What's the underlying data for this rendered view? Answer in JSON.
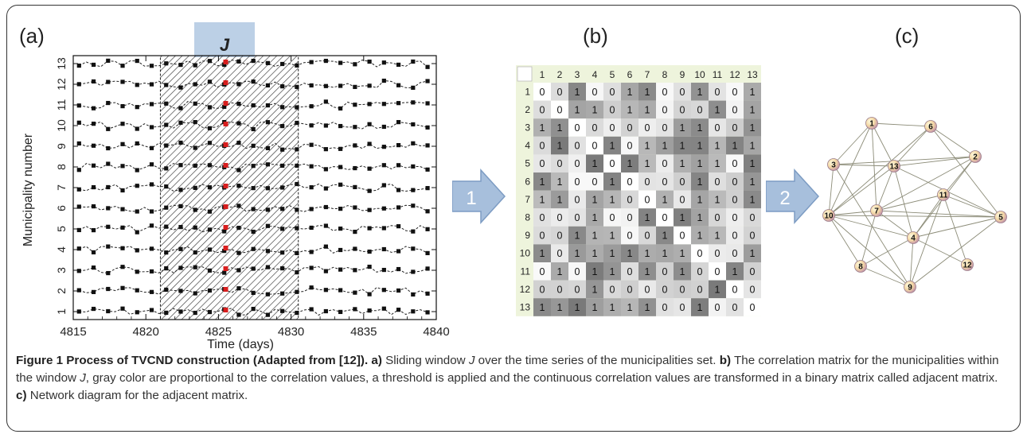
{
  "panels": {
    "a": "(a)",
    "b": "(b)",
    "c": "(c)"
  },
  "window_label": "J",
  "steps": {
    "one": "1",
    "two": "2"
  },
  "panel_a": {
    "xlabel": "Time (days)",
    "ylabel": "Municipality number",
    "xticks": [
      "4815",
      "4820",
      "4825",
      "4830",
      "4835",
      "4840"
    ],
    "yticks": [
      "1",
      "2",
      "3",
      "4",
      "5",
      "6",
      "7",
      "8",
      "9",
      "10",
      "11",
      "12",
      "13"
    ],
    "xlim": [
      4815,
      4840
    ],
    "window": [
      4821,
      4830.5
    ],
    "current_day": 4825.5
  },
  "matrix": {
    "labels": [
      "1",
      "2",
      "3",
      "4",
      "5",
      "6",
      "7",
      "8",
      "9",
      "10",
      "11",
      "12",
      "13"
    ],
    "values": [
      [
        0,
        0,
        1,
        0,
        0,
        1,
        1,
        0,
        0,
        1,
        0,
        0,
        1
      ],
      [
        0,
        0,
        1,
        1,
        0,
        1,
        1,
        0,
        0,
        0,
        1,
        0,
        1
      ],
      [
        1,
        1,
        0,
        0,
        0,
        0,
        0,
        0,
        1,
        1,
        0,
        0,
        1
      ],
      [
        0,
        1,
        0,
        0,
        1,
        0,
        1,
        1,
        1,
        1,
        1,
        1,
        1
      ],
      [
        0,
        0,
        0,
        1,
        0,
        1,
        1,
        0,
        1,
        1,
        1,
        0,
        1
      ],
      [
        1,
        1,
        0,
        0,
        1,
        0,
        0,
        0,
        0,
        1,
        0,
        0,
        1
      ],
      [
        1,
        1,
        0,
        1,
        1,
        0,
        0,
        1,
        0,
        1,
        1,
        0,
        1
      ],
      [
        0,
        0,
        0,
        1,
        0,
        0,
        1,
        0,
        1,
        1,
        0,
        0,
        0
      ],
      [
        0,
        0,
        1,
        1,
        1,
        0,
        0,
        1,
        0,
        1,
        1,
        0,
        0
      ],
      [
        1,
        0,
        1,
        1,
        1,
        1,
        1,
        1,
        1,
        0,
        0,
        0,
        1
      ],
      [
        0,
        1,
        0,
        1,
        1,
        0,
        1,
        0,
        1,
        0,
        0,
        1,
        0
      ],
      [
        0,
        0,
        0,
        1,
        0,
        0,
        0,
        0,
        0,
        0,
        1,
        0,
        0
      ],
      [
        1,
        1,
        1,
        1,
        1,
        1,
        1,
        0,
        0,
        1,
        0,
        0,
        0
      ]
    ]
  },
  "network": {
    "nodes": [
      "1",
      "2",
      "3",
      "4",
      "5",
      "6",
      "7",
      "8",
      "9",
      "10",
      "11",
      "12",
      "13"
    ]
  },
  "caption": {
    "figure_title": "Figure 1 Process of TVCND construction (Adapted from [12]).",
    "a_tag": "a)",
    "a_text_1": "Sliding window ",
    "a_window": "J",
    "a_text_2": " over the time series of the municipalities set.",
    "b_tag": "b)",
    "b_text_1": "The correlation matrix for the municipalities within the window ",
    "b_window": "J",
    "b_text_2": ", gray color are proportional to the correlation values, a threshold is applied and the continuous correlation values are transformed in a binary matrix called adjacent matrix.",
    "c_tag": "c)",
    "c_text": "Network diagram for the adjacent matrix."
  }
}
